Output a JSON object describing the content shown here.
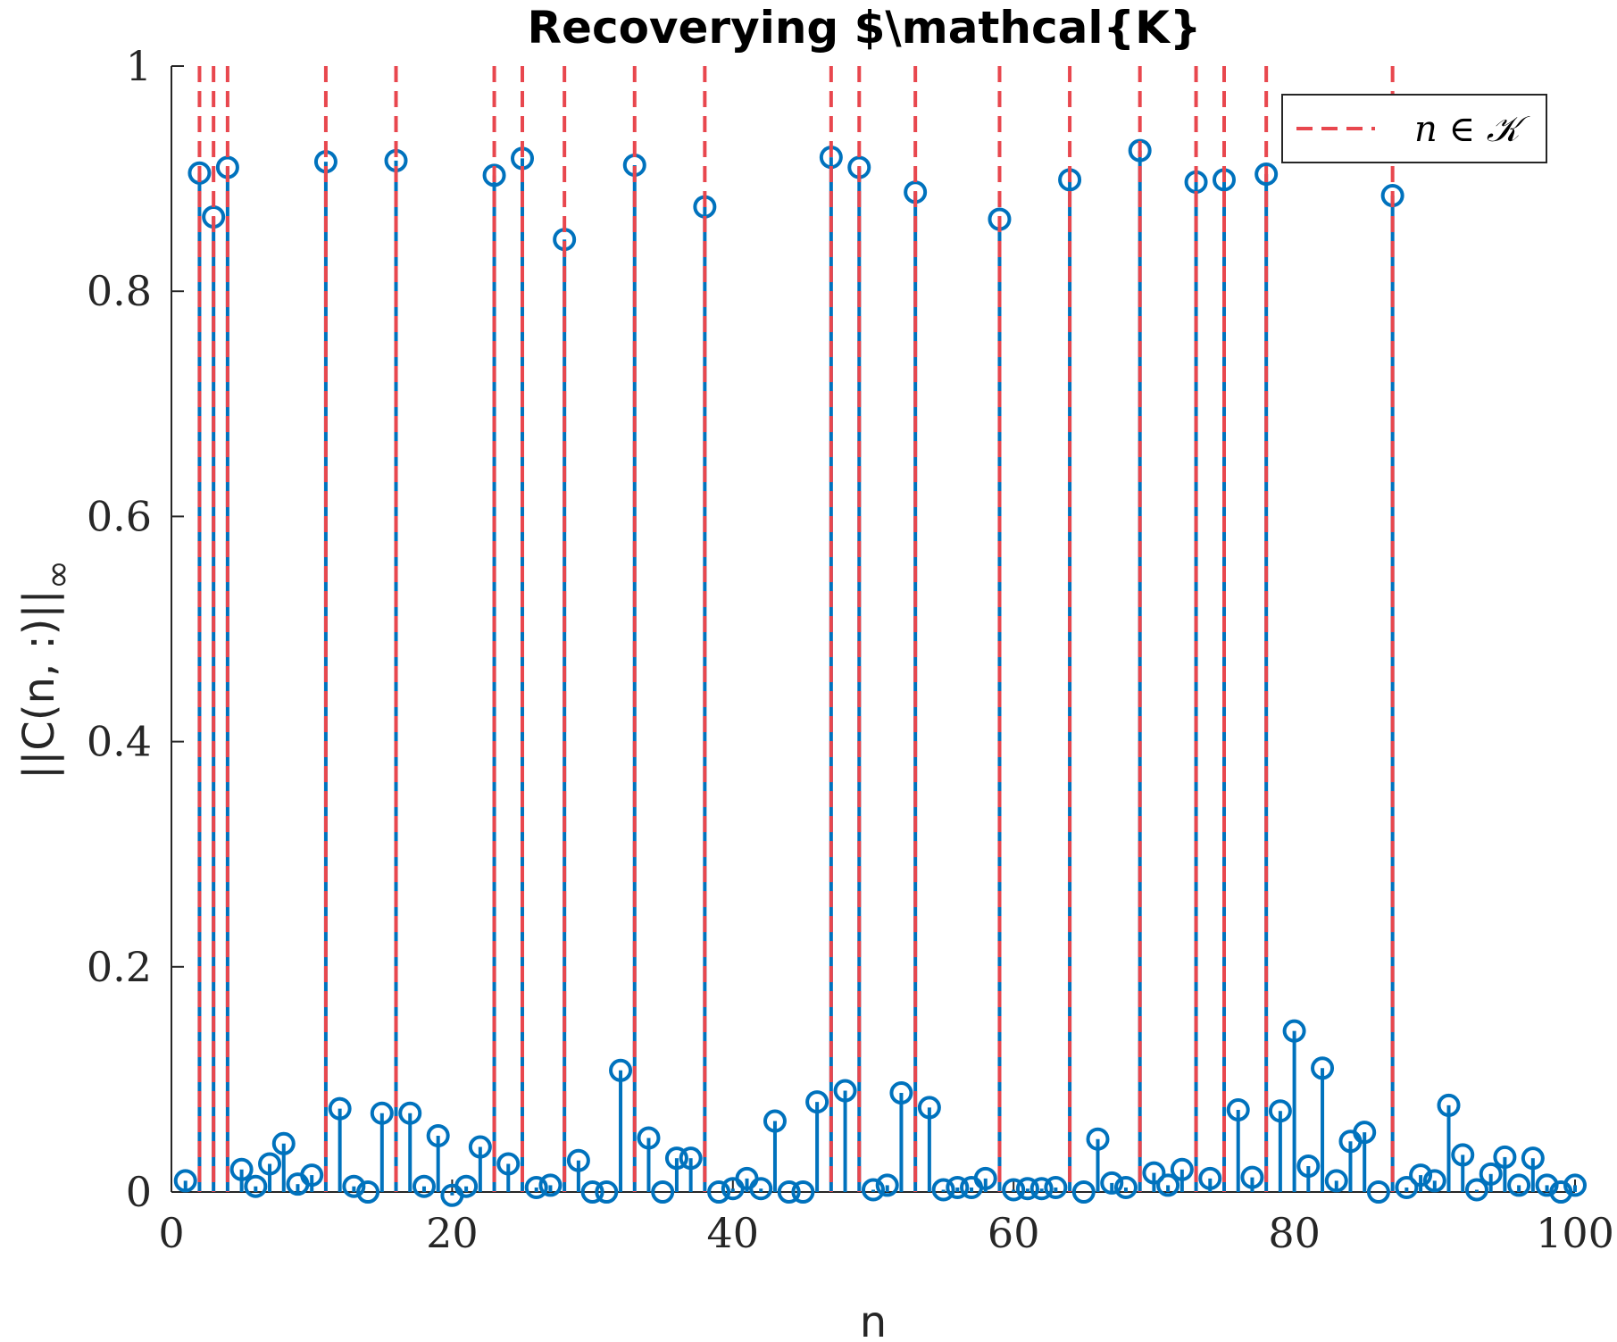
{
  "chart_data": {
    "type": "stem",
    "title": "Recoverying $\\mathcal{K}",
    "xlabel": "n",
    "ylabel": "||C(n, :)||",
    "ylabel_subscript": "∞",
    "xlim": [
      0,
      100
    ],
    "ylim": [
      0,
      1
    ],
    "xticks": [
      "0",
      "20",
      "40",
      "60",
      "80",
      "100"
    ],
    "yticks": [
      "0",
      "0.2",
      "0.4",
      "0.6",
      "0.8",
      "1"
    ],
    "xtick_values": [
      0,
      20,
      40,
      60,
      80,
      100
    ],
    "ytick_values": [
      0,
      0.2,
      0.4,
      0.6,
      0.8,
      1
    ],
    "grid": false,
    "legend": {
      "placement": "top-right",
      "entries": [
        {
          "label": "n ∈ 𝒦",
          "style": "dashed",
          "color": "#e8474e"
        }
      ]
    },
    "colors": {
      "stem": "#0072bd",
      "reference": "#e8474e"
    },
    "series": [
      {
        "kind": "stem",
        "x": [
          1,
          2,
          3,
          4,
          5,
          6,
          7,
          8,
          9,
          10,
          11,
          12,
          13,
          14,
          15,
          16,
          17,
          18,
          19,
          20,
          21,
          22,
          23,
          24,
          25,
          26,
          27,
          28,
          29,
          30,
          31,
          32,
          33,
          34,
          35,
          36,
          37,
          38,
          39,
          40,
          41,
          42,
          43,
          44,
          45,
          46,
          47,
          48,
          49,
          50,
          51,
          52,
          53,
          54,
          55,
          56,
          57,
          58,
          59,
          60,
          61,
          62,
          63,
          64,
          65,
          66,
          67,
          68,
          69,
          70,
          71,
          72,
          73,
          74,
          75,
          76,
          77,
          78,
          79,
          80,
          81,
          82,
          83,
          84,
          85,
          86,
          87,
          88,
          89,
          90,
          91,
          92,
          93,
          94,
          95,
          96,
          97,
          98,
          99,
          100
        ],
        "values": [
          0.01,
          0.905,
          0.866,
          0.91,
          0.02,
          0.005,
          0.025,
          0.043,
          0.007,
          0.015,
          0.915,
          0.074,
          0.005,
          0.0,
          0.07,
          0.916,
          0.07,
          0.005,
          0.05,
          -0.003,
          0.005,
          0.04,
          0.903,
          0.025,
          0.918,
          0.004,
          0.006,
          0.846,
          0.028,
          0.0,
          0.0,
          0.108,
          0.912,
          0.048,
          0.0,
          0.03,
          0.03,
          0.875,
          0.0,
          0.003,
          0.012,
          0.003,
          0.063,
          0.0,
          0.0,
          0.08,
          0.919,
          0.09,
          0.91,
          0.002,
          0.006,
          0.088,
          0.888,
          0.075,
          0.002,
          0.004,
          0.004,
          0.012,
          0.864,
          0.002,
          0.003,
          0.003,
          0.004,
          0.899,
          0.0,
          0.047,
          0.008,
          0.004,
          0.925,
          0.017,
          0.006,
          0.02,
          0.897,
          0.012,
          0.899,
          0.073,
          0.013,
          0.904,
          0.072,
          0.143,
          0.023,
          0.11,
          0.01,
          0.045,
          0.053,
          0.0,
          0.885,
          0.004,
          0.015,
          0.01,
          0.077,
          0.033,
          0.002,
          0.016,
          0.031,
          0.006,
          0.03,
          0.006,
          0.0,
          0.006
        ]
      },
      {
        "kind": "reference-lines",
        "name": "n ∈ 𝒦",
        "x": [
          2,
          3,
          4,
          11,
          16,
          23,
          25,
          28,
          33,
          38,
          47,
          49,
          53,
          59,
          64,
          69,
          73,
          75,
          78,
          87
        ]
      }
    ]
  }
}
